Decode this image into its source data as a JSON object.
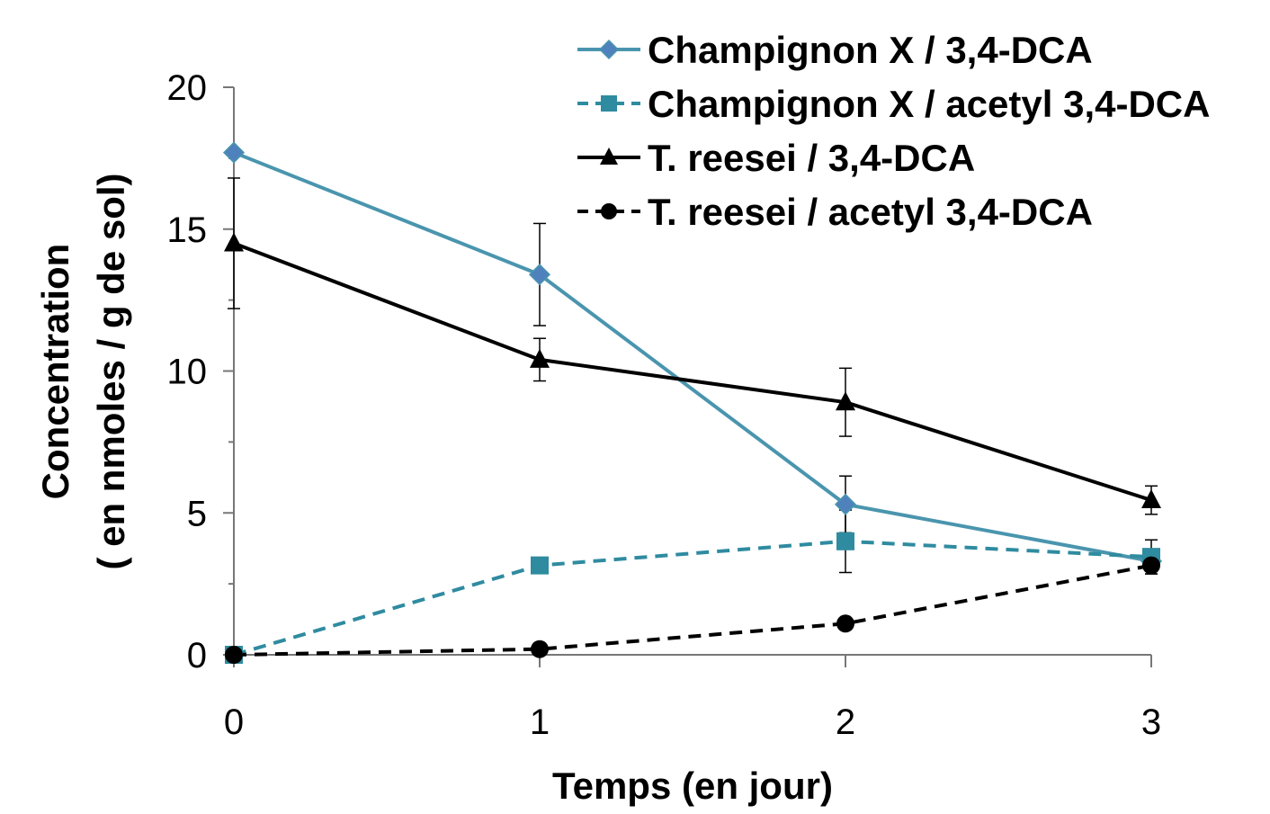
{
  "chart_data": {
    "type": "line",
    "xlabel": "Temps (en jour)",
    "ylabel_lines": [
      "Concentration",
      "( en nmoles / g de sol)"
    ],
    "x": [
      0,
      1,
      2,
      3
    ],
    "x_tick_labels": [
      "0",
      "1",
      "2",
      "3"
    ],
    "y_tick_values": [
      0,
      5,
      10,
      15,
      20
    ],
    "y_tick_labels": [
      "0",
      "5",
      "10",
      "15",
      "20"
    ],
    "xlim": [
      0,
      3
    ],
    "ylim": [
      0,
      20
    ],
    "grid": false,
    "legend_position": "top-right",
    "series": [
      {
        "name": "Champignon X / 3,4-DCA",
        "values": [
          17.7,
          13.4,
          5.3,
          3.3
        ],
        "errors": [
          null,
          1.8,
          1.0,
          null
        ],
        "color": "#4a95ae",
        "dash": "solid",
        "marker": "diamond"
      },
      {
        "name": "Champignon X / acetyl 3,4-DCA",
        "values": [
          0,
          3.15,
          4.0,
          3.45
        ],
        "errors": [
          null,
          null,
          1.1,
          0.6
        ],
        "color": "#2f8ba0",
        "dash": "dashed",
        "marker": "square"
      },
      {
        "name": "T. reesei / 3,4-DCA",
        "values": [
          14.5,
          10.4,
          8.9,
          5.45
        ],
        "errors": [
          2.3,
          0.75,
          1.2,
          0.5
        ],
        "color": "#000000",
        "dash": "solid",
        "marker": "triangle"
      },
      {
        "name": "T. reesei / acetyl 3,4-DCA",
        "values": [
          0,
          0.2,
          1.1,
          3.15
        ],
        "errors": [
          null,
          null,
          null,
          0.3
        ],
        "color": "#000000",
        "dash": "dashed",
        "marker": "circle"
      }
    ]
  }
}
